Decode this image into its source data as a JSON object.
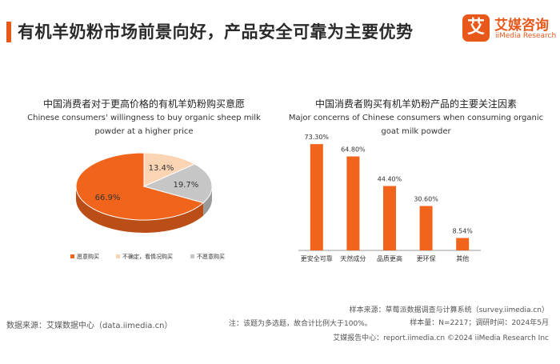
{
  "header": {
    "title": "有机羊奶粉市场前景向好，产品安全可靠为主要优势",
    "logo_mark": "艾",
    "logo_cn": "艾媒咨询",
    "logo_en": "iiMedia Research"
  },
  "chart_data": [
    {
      "type": "pie",
      "title": "中国消费者对于更高价格的有机羊奶粉购买意愿",
      "subtitle": "Chinese consumers' willingness to buy organic sheep milk powder at a higher price",
      "slices": [
        {
          "label": "愿意购买",
          "value": 66.9,
          "value_label": "66.9%",
          "color": "#f0641c"
        },
        {
          "label": "不确定，看情况购买",
          "value": 13.4,
          "value_label": "13.4%",
          "color": "#fbd4b4"
        },
        {
          "label": "不愿意购买",
          "value": 19.7,
          "value_label": "19.7%",
          "color": "#c6c6c6"
        }
      ],
      "legend_position": "bottom"
    },
    {
      "type": "bar",
      "title": "中国消费者购买有机羊奶粉产品的主要关注因素",
      "subtitle": "Major concerns of Chinese consumers when consuming organic goat milk powder",
      "categories": [
        "更安全可靠",
        "天然成分",
        "品质更高",
        "更环保",
        "其他"
      ],
      "values": [
        73.3,
        64.8,
        44.4,
        30.6,
        8.54
      ],
      "value_labels": [
        "73.30%",
        "64.80%",
        "44.40%",
        "30.60%",
        "8.54%"
      ],
      "ylim": [
        0,
        80
      ],
      "color": "#f0641c",
      "grid": false
    }
  ],
  "footer": {
    "source_left": "数据来源：艾媒数据中心（data.iimedia.cn）",
    "note": "注：该题为多选题，故合计比例大于100%。",
    "sample_source": "样本来源：草莓派数据调查与计算系统（survey.iimedia.cn）",
    "sample_size": "样本量：N=2217；调研时间：2024年5月",
    "report_center": "艾媒报告中心：report.iimedia.cn  ©2024  iiMedia Research  Inc"
  }
}
